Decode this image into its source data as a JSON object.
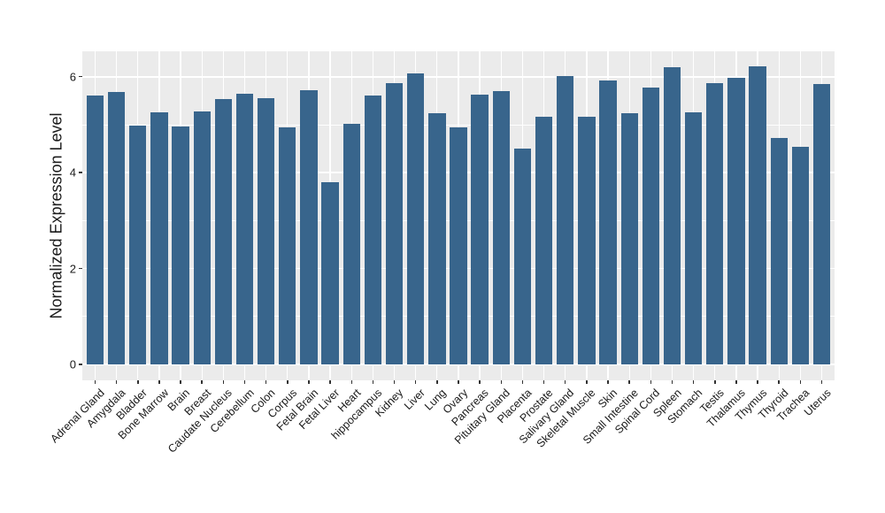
{
  "colors": {
    "bar_fill": "#38658C",
    "panel_background": "#EBEBEB",
    "grid_line": "#ffffff",
    "axis_text": "#1a1a1a",
    "tick_mark": "#333333",
    "figure_background": "#ffffff"
  },
  "chart_data": {
    "type": "bar",
    "title": "",
    "xlabel": "",
    "ylabel": "Normalized Expression Level",
    "legend_position": "none",
    "grid": "on",
    "ylim": [
      -0.33,
      6.53
    ],
    "yticks": [
      0,
      2,
      4,
      6
    ],
    "ytick_labels": [
      "0",
      "2",
      "4",
      "6"
    ],
    "minor_gridlines": [
      1,
      3,
      5
    ],
    "categories": [
      "Adrenal Gland",
      "Amygdala",
      "Bladder",
      "Bone Marrow",
      "Brain",
      "Breast",
      "Caudate Nucleus",
      "Cerebellum",
      "Colon",
      "Corpus",
      "Fetal Brain",
      "Fetal Liver",
      "Heart",
      "hippocampus",
      "Kidney",
      "Liver",
      "Lung",
      "Ovary",
      "Pancreas",
      "Pituitary Gland",
      "Placenta",
      "Prostate",
      "Salivary Gland",
      "Skeletal Muscle",
      "Skin",
      "Small Intestine",
      "Spinal Cord",
      "Spleen",
      "Stomach",
      "Testis",
      "Thalamus",
      "Thymus",
      "Thyroid",
      "Trachea",
      "Uterus"
    ],
    "values": [
      5.61,
      5.68,
      4.99,
      5.26,
      4.97,
      5.28,
      5.53,
      5.65,
      5.55,
      4.95,
      5.72,
      3.8,
      5.01,
      5.61,
      5.87,
      6.07,
      5.24,
      4.95,
      5.63,
      5.7,
      4.51,
      5.16,
      6.02,
      5.16,
      5.93,
      5.24,
      5.78,
      6.19,
      5.26,
      5.87,
      5.98,
      6.22,
      4.73,
      4.53,
      5.84
    ]
  }
}
